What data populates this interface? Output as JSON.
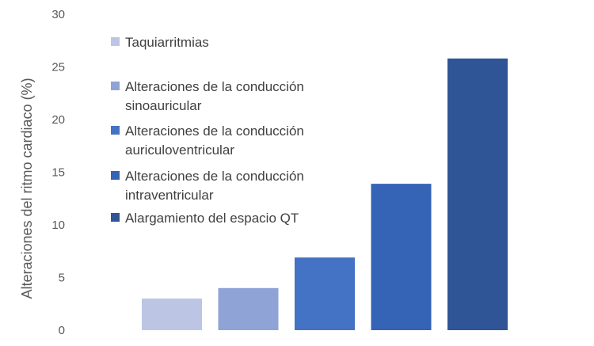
{
  "chart_data": {
    "type": "bar",
    "title": "",
    "xlabel": "",
    "ylabel": "Alteraciones del ritmo cardiaco (%)",
    "ylim": [
      0,
      30
    ],
    "yticks": [
      0,
      5,
      10,
      15,
      20,
      25,
      30
    ],
    "grid": false,
    "legend_position": "left",
    "series": [
      {
        "name": "Taquiarritmias",
        "lines": [
          "Taquiarritmias"
        ],
        "value": 3.0,
        "color": "#bcc6e4"
      },
      {
        "name": "Alteraciones de la conducción sinoauricular",
        "lines": [
          "Alteraciones de la conducción",
          "sinoauricular"
        ],
        "value": 4.0,
        "color": "#8fa3d6"
      },
      {
        "name": "Alteraciones de la conducción auriculoventricular",
        "lines": [
          "Alteraciones de la conducción",
          "auriculoventricular"
        ],
        "value": 6.9,
        "color": "#4472c4"
      },
      {
        "name": "Alteraciones de la conducción intraventricular",
        "lines": [
          "Alteraciones de la conducción",
          "intraventricular"
        ],
        "value": 13.9,
        "color": "#3563b5"
      },
      {
        "name": "Alargamiento del espacio QT",
        "lines": [
          "Alargamiento del espacio QT"
        ],
        "value": 25.8,
        "color": "#2f5597"
      }
    ]
  }
}
